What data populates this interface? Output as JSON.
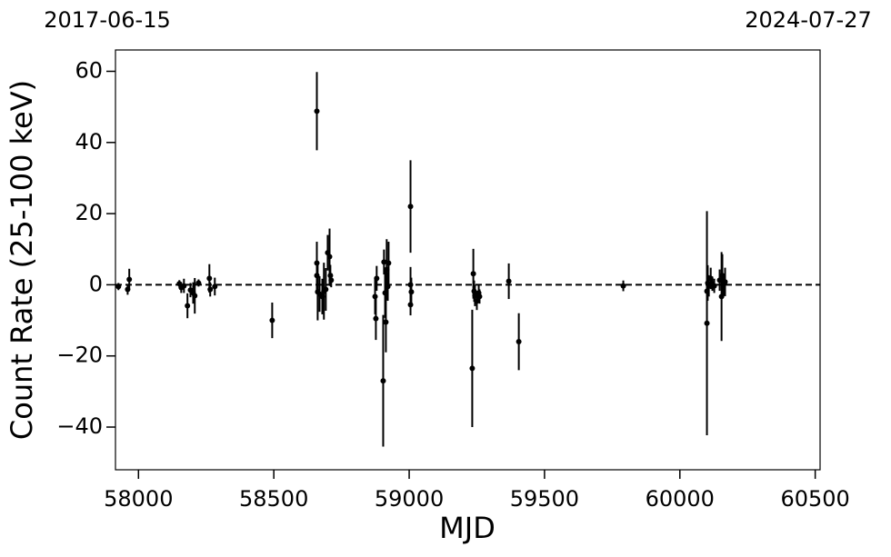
{
  "chart_data": {
    "type": "errorbar",
    "start_label": "2017-06-15",
    "end_label": "2024-07-27",
    "xlabel": "MJD",
    "ylabel": "Count Rate (25-100 keV)",
    "xlim": [
      57915,
      60518
    ],
    "ylim": [
      -52,
      66
    ],
    "xticks": [
      58000,
      58500,
      59000,
      59500,
      60000,
      60500
    ],
    "yticks": [
      {
        "value": -40,
        "label": "−40"
      },
      {
        "value": -20,
        "label": "−20"
      },
      0,
      20,
      40,
      60
    ],
    "hline": 0,
    "series": [
      {
        "color": "#000000",
        "x": [
          57926,
          57960,
          57966,
          58151,
          58158,
          58168,
          58181,
          58192,
          58202,
          58208,
          58222,
          58262,
          58265,
          58282,
          58494,
          58659,
          58659,
          58659,
          58662,
          58669,
          58679,
          58685,
          58692,
          58699,
          58706,
          58709,
          58712,
          58874,
          58877,
          58880,
          58904,
          58907,
          58911,
          58914,
          58917,
          58921,
          58924,
          59005,
          59005,
          59005,
          59008,
          59233,
          59237,
          59240,
          59243,
          59250,
          59257,
          59260,
          59368,
          59405,
          59791,
          60100,
          60100,
          60103,
          60107,
          60114,
          60120,
          60127,
          60147,
          60154,
          60157,
          60161,
          60167
        ],
        "values": [
          -0.5,
          -1.3,
          1.5,
          0.3,
          -0.8,
          -0.3,
          -5.9,
          -1.5,
          -2.3,
          -3.1,
          0.5,
          1.8,
          -1.3,
          -0.5,
          -10,
          48.8,
          6.1,
          2.6,
          -2,
          -2.6,
          -3.3,
          -1.8,
          -1.3,
          9,
          7.9,
          2.6,
          1.3,
          -3.3,
          -9.5,
          1.8,
          -27,
          6.4,
          -2.3,
          -10.5,
          4.3,
          -0.5,
          6.1,
          22,
          0,
          -5.6,
          -2,
          -23.5,
          3.1,
          -1.8,
          -3,
          -4.6,
          -2.3,
          -3.3,
          1,
          -16,
          -0.3,
          -10.8,
          -1.8,
          0.5,
          -0.3,
          1.8,
          0.3,
          -0.3,
          1.3,
          -3.3,
          2.6,
          0,
          0.8
        ],
        "errors": [
          1,
          1.5,
          3,
          1,
          1.5,
          2,
          3.5,
          2,
          3,
          5,
          1,
          4,
          2,
          2.5,
          5,
          11,
          6,
          5,
          8,
          5,
          5,
          8,
          6,
          5,
          7.9,
          3,
          2,
          5,
          6,
          3.5,
          18.5,
          3.5,
          7,
          8.5,
          8.5,
          4,
          6,
          13,
          5,
          3,
          4,
          16.5,
          7,
          3,
          3,
          2.5,
          2.5,
          2,
          5,
          8,
          1.5,
          31.5,
          1,
          5,
          3,
          3,
          2,
          2,
          3,
          12.5,
          6,
          3,
          4
        ]
      }
    ]
  }
}
